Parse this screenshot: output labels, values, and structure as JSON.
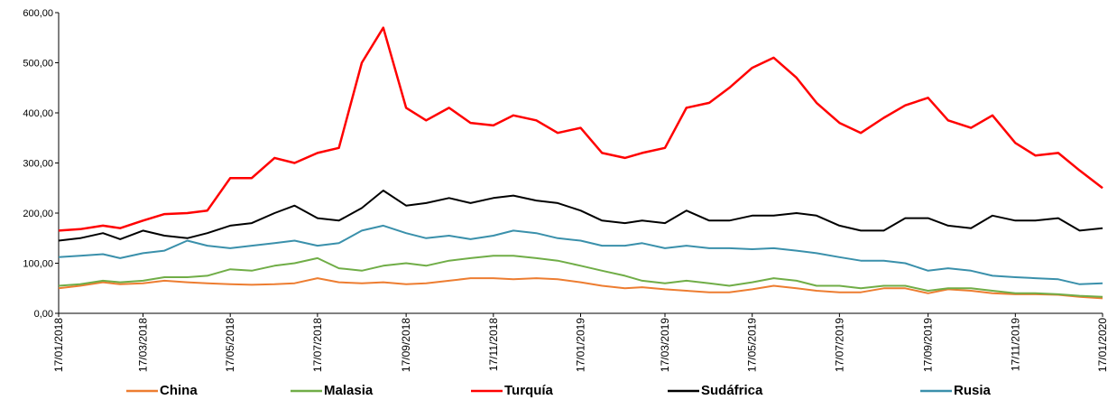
{
  "chart_data": {
    "type": "line",
    "x": [
      "17/01/2018",
      "01/02/2018",
      "17/02/2018",
      "01/03/2018",
      "17/03/2018",
      "01/04/2018",
      "17/04/2018",
      "01/05/2018",
      "17/05/2018",
      "01/06/2018",
      "17/06/2018",
      "01/07/2018",
      "17/07/2018",
      "01/08/2018",
      "17/08/2018",
      "01/09/2018",
      "17/09/2018",
      "01/10/2018",
      "17/10/2018",
      "01/11/2018",
      "17/11/2018",
      "01/12/2018",
      "17/12/2018",
      "01/01/2019",
      "17/01/2019",
      "01/02/2019",
      "17/02/2019",
      "01/03/2019",
      "17/03/2019",
      "01/04/2019",
      "17/04/2019",
      "01/05/2019",
      "17/05/2019",
      "01/06/2019",
      "17/06/2019",
      "01/07/2019",
      "17/07/2019",
      "01/08/2019",
      "17/08/2019",
      "01/09/2019",
      "17/09/2019",
      "01/10/2019",
      "17/10/2019",
      "01/11/2019",
      "17/11/2019",
      "01/12/2019",
      "17/12/2019",
      "01/01/2020",
      "17/01/2020"
    ],
    "series": [
      {
        "name": "China",
        "color": "#ed7d31",
        "values": [
          50,
          55,
          62,
          58,
          60,
          65,
          62,
          60,
          58,
          57,
          58,
          60,
          70,
          62,
          60,
          62,
          58,
          60,
          65,
          70,
          70,
          68,
          70,
          68,
          62,
          55,
          50,
          52,
          48,
          45,
          42,
          42,
          48,
          55,
          50,
          45,
          42,
          42,
          50,
          50,
          40,
          48,
          45,
          40,
          38,
          38,
          37,
          33,
          30
        ]
      },
      {
        "name": "Malasia",
        "color": "#70ad47",
        "values": [
          55,
          58,
          65,
          62,
          65,
          72,
          72,
          75,
          88,
          85,
          95,
          100,
          110,
          90,
          85,
          95,
          100,
          95,
          105,
          110,
          115,
          115,
          110,
          105,
          95,
          85,
          75,
          65,
          60,
          65,
          60,
          55,
          62,
          70,
          65,
          55,
          55,
          50,
          55,
          55,
          45,
          50,
          50,
          45,
          40,
          40,
          38,
          35,
          33
        ]
      },
      {
        "name": "Turquía",
        "color": "#ff0000",
        "values": [
          165,
          168,
          175,
          170,
          185,
          198,
          200,
          205,
          270,
          270,
          310,
          300,
          320,
          330,
          500,
          570,
          410,
          385,
          410,
          380,
          375,
          395,
          385,
          360,
          370,
          320,
          310,
          320,
          330,
          410,
          420,
          450,
          490,
          510,
          470,
          420,
          380,
          360,
          390,
          415,
          430,
          385,
          370,
          395,
          340,
          315,
          320,
          285,
          250
        ]
      },
      {
        "name": "Sudáfrica",
        "color": "#000000",
        "values": [
          145,
          150,
          160,
          148,
          165,
          155,
          150,
          160,
          175,
          180,
          200,
          215,
          190,
          185,
          210,
          245,
          215,
          220,
          230,
          220,
          230,
          235,
          225,
          220,
          205,
          185,
          180,
          185,
          180,
          205,
          185,
          185,
          195,
          195,
          200,
          195,
          175,
          165,
          165,
          190,
          190,
          175,
          170,
          195,
          185,
          185,
          190,
          165,
          170
        ]
      },
      {
        "name": "Rusia",
        "color": "#3a90ab",
        "values": [
          112,
          115,
          118,
          110,
          120,
          125,
          145,
          135,
          130,
          135,
          140,
          145,
          135,
          140,
          165,
          175,
          160,
          150,
          155,
          148,
          155,
          165,
          160,
          150,
          145,
          135,
          135,
          140,
          130,
          135,
          130,
          130,
          128,
          130,
          125,
          120,
          112,
          105,
          105,
          100,
          85,
          90,
          85,
          75,
          72,
          70,
          68,
          58,
          60
        ]
      }
    ],
    "ylim": [
      0,
      600
    ],
    "yticks": [
      {
        "value": 0,
        "label": "0,00"
      },
      {
        "value": 100,
        "label": "100,00"
      },
      {
        "value": 200,
        "label": "200,00"
      },
      {
        "value": 300,
        "label": "300,00"
      },
      {
        "value": 400,
        "label": "400,00"
      },
      {
        "value": 500,
        "label": "500,00"
      },
      {
        "value": 600,
        "label": "600,00"
      }
    ],
    "xticks": [
      "17/01/2018",
      "17/03/2018",
      "17/05/2018",
      "17/07/2018",
      "17/09/2018",
      "17/11/2018",
      "17/01/2019",
      "17/03/2019",
      "17/05/2019",
      "17/07/2019",
      "17/09/2019",
      "17/11/2019",
      "17/01/2020"
    ],
    "grid": false,
    "legend": "bottom"
  }
}
